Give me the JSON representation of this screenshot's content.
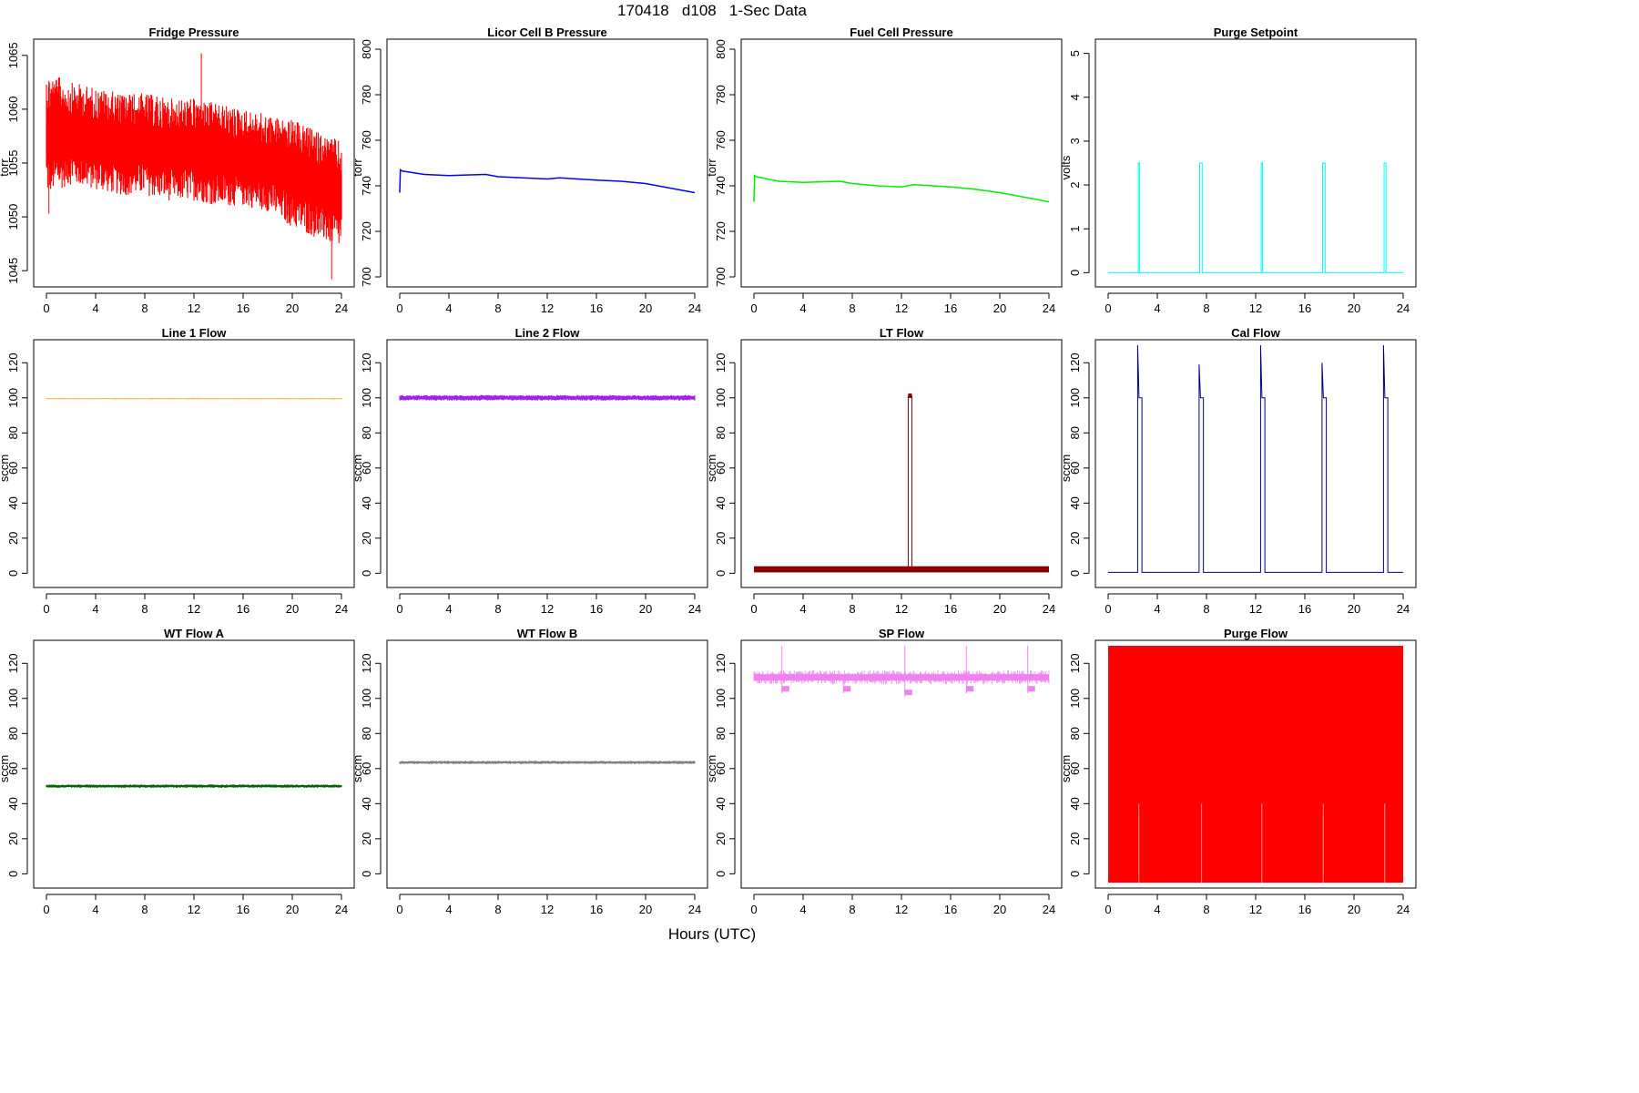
{
  "figure": {
    "title": "170418   d108   1-Sec Data",
    "xlabel": "Hours (UTC)"
  },
  "chart_data": [
    {
      "type": "line",
      "title": "Fridge Pressure",
      "ylabel": "torr",
      "color": "#ff0000",
      "xlim": [
        0,
        24
      ],
      "ylim": [
        1044,
        1066
      ],
      "yticks": [
        1045,
        1050,
        1055,
        1060,
        1065
      ],
      "x": [
        0,
        2,
        4,
        6,
        8,
        10,
        12,
        14,
        16,
        18,
        20,
        22,
        24
      ],
      "band": {
        "low": [
          1052,
          1053,
          1052.5,
          1052,
          1052,
          1051.5,
          1051.5,
          1051,
          1051,
          1050.5,
          1049,
          1048,
          1047
        ],
        "high": [
          1063.5,
          1062.5,
          1062,
          1061.5,
          1061.5,
          1061,
          1061,
          1060.5,
          1060,
          1059.5,
          1059,
          1058,
          1057
        ]
      },
      "spikes": [
        {
          "x": 0.2,
          "y": 1050.3
        },
        {
          "x": 12.6,
          "y": 1065.2
        },
        {
          "x": 23.2,
          "y": 1044.2
        }
      ]
    },
    {
      "type": "line",
      "title": "Licor Cell B Pressure",
      "ylabel": "torr",
      "color": "#0000ff",
      "xlim": [
        0,
        24
      ],
      "ylim": [
        698,
        802
      ],
      "yticks": [
        700,
        720,
        740,
        760,
        780,
        800
      ],
      "x": [
        0,
        0.05,
        0.2,
        2,
        4,
        7,
        8,
        10,
        12,
        13,
        16,
        18,
        20,
        22,
        24
      ],
      "y": [
        737,
        747,
        746.5,
        745,
        744.5,
        745,
        744,
        743.5,
        743,
        743.5,
        742.5,
        742,
        741,
        739,
        737
      ]
    },
    {
      "type": "line",
      "title": "Fuel Cell Pressure",
      "ylabel": "torr",
      "color": "#00ee00",
      "xlim": [
        0,
        24
      ],
      "ylim": [
        698,
        802
      ],
      "yticks": [
        700,
        720,
        740,
        760,
        780,
        800
      ],
      "x": [
        0,
        0.05,
        0.2,
        2,
        4,
        7,
        8,
        10,
        12,
        13,
        16,
        18,
        20,
        22,
        24
      ],
      "y": [
        733,
        744.5,
        744,
        742,
        741.5,
        742,
        741,
        740,
        739.5,
        740.5,
        739.5,
        738.5,
        737,
        735,
        733
      ]
    },
    {
      "type": "line",
      "title": "Purge Setpoint",
      "ylabel": "volts",
      "color": "#00ffff",
      "xlim": [
        0,
        24
      ],
      "ylim": [
        -0.2,
        5.2
      ],
      "yticks": [
        0,
        1,
        2,
        3,
        4,
        5
      ],
      "baseline": 0,
      "pulses": [
        {
          "start": 2.45,
          "end": 2.55,
          "level": 2.5
        },
        {
          "start": 7.45,
          "end": 7.65,
          "level": 2.5
        },
        {
          "start": 12.45,
          "end": 12.55,
          "level": 2.5
        },
        {
          "start": 17.45,
          "end": 17.65,
          "level": 2.5
        },
        {
          "start": 22.45,
          "end": 22.6,
          "level": 2.5
        }
      ]
    },
    {
      "type": "line",
      "title": "Line 1 Flow",
      "ylabel": "sccm",
      "color": "#ffa500",
      "xlim": [
        0,
        24
      ],
      "ylim": [
        -5,
        130
      ],
      "yticks": [
        0,
        20,
        40,
        60,
        80,
        100,
        120
      ],
      "x": [
        0,
        24
      ],
      "y": [
        99.5,
        99.5
      ],
      "thickness": 0.5
    },
    {
      "type": "line",
      "title": "Line 2 Flow",
      "ylabel": "sccm",
      "color": "#a020f0",
      "xlim": [
        0,
        24
      ],
      "ylim": [
        -5,
        130
      ],
      "yticks": [
        0,
        20,
        40,
        60,
        80,
        100,
        120
      ],
      "x": [
        0,
        24
      ],
      "y": [
        100,
        100
      ],
      "thickness": 2.5
    },
    {
      "type": "line",
      "title": "LT Flow",
      "ylabel": "sccm",
      "color": "#8b0000",
      "xlim": [
        0,
        24
      ],
      "ylim": [
        -5,
        130
      ],
      "yticks": [
        0,
        20,
        40,
        60,
        80,
        100,
        120
      ],
      "baseline": 1.5,
      "thickness": 4,
      "pulses": [
        {
          "start": 12.55,
          "end": 12.85,
          "level": 101
        }
      ]
    },
    {
      "type": "line",
      "title": "Cal Flow",
      "ylabel": "sccm",
      "color": "#000080",
      "xlim": [
        0,
        24
      ],
      "ylim": [
        -5,
        130
      ],
      "yticks": [
        0,
        20,
        40,
        60,
        80,
        100,
        120
      ],
      "baseline": 0.5,
      "pulses": [
        {
          "start": 2.4,
          "end": 2.75,
          "level": 100,
          "peak": 130
        },
        {
          "start": 7.4,
          "end": 7.75,
          "level": 100,
          "peak": 119
        },
        {
          "start": 12.4,
          "end": 12.75,
          "level": 100,
          "peak": 130
        },
        {
          "start": 17.4,
          "end": 17.75,
          "level": 100,
          "peak": 120
        },
        {
          "start": 22.4,
          "end": 22.75,
          "level": 100,
          "peak": 130
        }
      ]
    },
    {
      "type": "line",
      "title": "WT Flow A",
      "ylabel": "sccm",
      "color": "#006400",
      "xlim": [
        0,
        24
      ],
      "ylim": [
        -5,
        130
      ],
      "yticks": [
        0,
        20,
        40,
        60,
        80,
        100,
        120
      ],
      "x": [
        0,
        24
      ],
      "y": [
        50,
        50
      ],
      "thickness": 1.5
    },
    {
      "type": "line",
      "title": "WT Flow B",
      "ylabel": "sccm",
      "color": "#808080",
      "xlim": [
        0,
        24
      ],
      "ylim": [
        -5,
        130
      ],
      "yticks": [
        0,
        20,
        40,
        60,
        80,
        100,
        120
      ],
      "x": [
        0,
        24
      ],
      "y": [
        63.5,
        63.5
      ],
      "thickness": 1.5
    },
    {
      "type": "line",
      "title": "SP Flow",
      "ylabel": "sccm",
      "color": "#ee82ee",
      "xlim": [
        0,
        24
      ],
      "ylim": [
        -5,
        130
      ],
      "yticks": [
        0,
        20,
        40,
        60,
        80,
        100,
        120
      ],
      "baseline": 112,
      "thickness": 2,
      "dips": [
        {
          "x": 2.5,
          "y": 106,
          "spike": 130
        },
        {
          "x": 7.5,
          "y": 106,
          "spike": 113
        },
        {
          "x": 12.5,
          "y": 104,
          "spike": 130
        },
        {
          "x": 17.5,
          "y": 106,
          "spike": 130
        },
        {
          "x": 22.5,
          "y": 106,
          "spike": 130
        }
      ]
    },
    {
      "type": "area",
      "title": "Purge Flow",
      "ylabel": "sccm",
      "color": "#ff0000",
      "xlim": [
        0,
        24
      ],
      "ylim": [
        -5,
        130
      ],
      "yticks": [
        0,
        20,
        40,
        60,
        80,
        100,
        120
      ],
      "fill_from": -5,
      "fill_to": 130
    }
  ],
  "x_ticks": [
    0,
    4,
    8,
    12,
    16,
    20,
    24
  ]
}
